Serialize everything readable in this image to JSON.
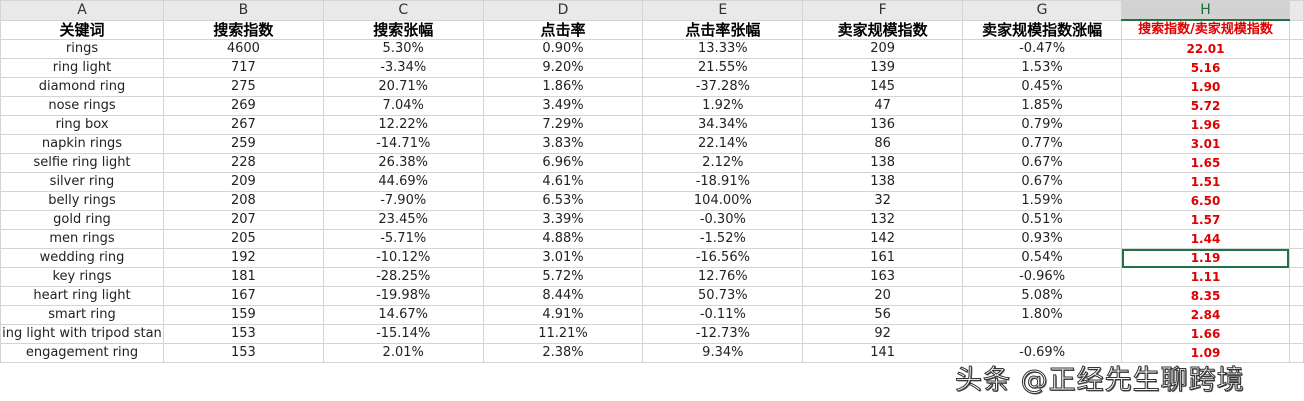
{
  "columns": [
    "A",
    "B",
    "C",
    "D",
    "E",
    "F",
    "G",
    "H"
  ],
  "headers": [
    "关键词",
    "搜索指数",
    "搜索张幅",
    "点击率",
    "点击率张幅",
    "卖家规模指数",
    "卖家规模指数涨幅",
    "搜索指数/卖家规模指数"
  ],
  "rows": [
    [
      "rings",
      "4600",
      "5.30%",
      "0.90%",
      "13.33%",
      "209",
      "-0.47%",
      "22.01"
    ],
    [
      "ring light",
      "717",
      "-3.34%",
      "9.20%",
      "21.55%",
      "139",
      "1.53%",
      "5.16"
    ],
    [
      "diamond  ring",
      "275",
      "20.71%",
      "1.86%",
      "-37.28%",
      "145",
      "0.45%",
      "1.90"
    ],
    [
      "nose rings",
      "269",
      "7.04%",
      "3.49%",
      "1.92%",
      "47",
      "1.85%",
      "5.72"
    ],
    [
      "ring box",
      "267",
      "12.22%",
      "7.29%",
      "34.34%",
      "136",
      "0.79%",
      "1.96"
    ],
    [
      "napkin rings",
      "259",
      "-14.71%",
      "3.83%",
      "22.14%",
      "86",
      "0.77%",
      "3.01"
    ],
    [
      "selfie ring light",
      "228",
      "26.38%",
      "6.96%",
      "2.12%",
      "138",
      "0.67%",
      "1.65"
    ],
    [
      "silver ring",
      "209",
      "44.69%",
      "4.61%",
      "-18.91%",
      "138",
      "0.67%",
      "1.51"
    ],
    [
      "belly rings",
      "208",
      "-7.90%",
      "6.53%",
      "104.00%",
      "32",
      "1.59%",
      "6.50"
    ],
    [
      "gold ring",
      "207",
      "23.45%",
      "3.39%",
      "-0.30%",
      "132",
      "0.51%",
      "1.57"
    ],
    [
      "men rings",
      "205",
      "-5.71%",
      "4.88%",
      "-1.52%",
      "142",
      "0.93%",
      "1.44"
    ],
    [
      "wedding ring",
      "192",
      "-10.12%",
      "3.01%",
      "-16.56%",
      "161",
      "0.54%",
      "1.19"
    ],
    [
      "key rings",
      "181",
      "-28.25%",
      "5.72%",
      "12.76%",
      "163",
      "-0.96%",
      "1.11"
    ],
    [
      "heart ring light",
      "167",
      "-19.98%",
      "8.44%",
      "50.73%",
      "20",
      "5.08%",
      "8.35"
    ],
    [
      "smart ring",
      "159",
      "14.67%",
      "4.91%",
      "-0.11%",
      "56",
      "1.80%",
      "2.84"
    ],
    [
      "ing light with tripod stan",
      "153",
      "-15.14%",
      "11.21%",
      "-12.73%",
      "92",
      "",
      "1.66"
    ],
    [
      "engagement ring",
      "153",
      "2.01%",
      "2.38%",
      "9.34%",
      "141",
      "-0.69%",
      "1.09"
    ]
  ],
  "watermark": "头条 @正经先生聊跨境",
  "colors": {
    "highlight": "#e00000",
    "selection": "#217346"
  }
}
